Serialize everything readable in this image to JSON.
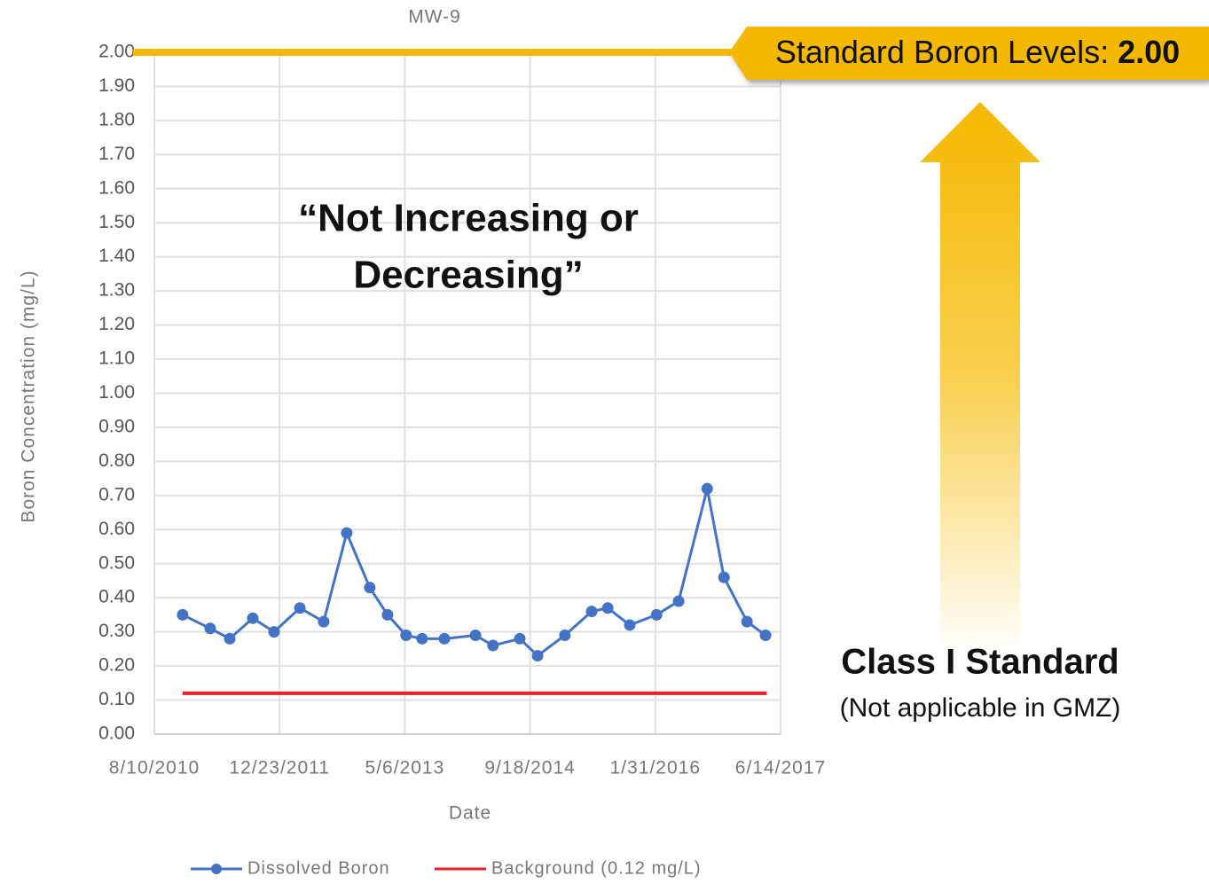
{
  "chart_data": {
    "type": "line",
    "title": "MW-9",
    "x_label": "Date",
    "y_label": "Boron Concentration  (mg/L)",
    "xlim": [
      "2010-08-10",
      "2017-06-14"
    ],
    "xticks": [
      {
        "value": "2010-08-10",
        "label": "8/10/2010"
      },
      {
        "value": "2011-12-23",
        "label": "12/23/2011"
      },
      {
        "value": "2013-05-06",
        "label": "5/6/2013"
      },
      {
        "value": "2014-09-18",
        "label": "9/18/2014"
      },
      {
        "value": "2016-01-31",
        "label": "1/31/2016"
      },
      {
        "value": "2017-06-14",
        "label": "6/14/2017"
      }
    ],
    "ylim": [
      0,
      2
    ],
    "yticks": [
      {
        "value": 0,
        "label": "0.00"
      },
      {
        "value": 0.1,
        "label": "0.10"
      },
      {
        "value": 0.2,
        "label": "0.20"
      },
      {
        "value": 0.3,
        "label": "0.30"
      },
      {
        "value": 0.4,
        "label": "0.40"
      },
      {
        "value": 0.5,
        "label": "0.50"
      },
      {
        "value": 0.6,
        "label": "0.60"
      },
      {
        "value": 0.7,
        "label": "0.70"
      },
      {
        "value": 0.8,
        "label": "0.80"
      },
      {
        "value": 0.9,
        "label": "0.90"
      },
      {
        "value": 1,
        "label": "1.00"
      },
      {
        "value": 1.1,
        "label": "1.10"
      },
      {
        "value": 1.2,
        "label": "1.20"
      },
      {
        "value": 1.3,
        "label": "1.30"
      },
      {
        "value": 1.4,
        "label": "1.40"
      },
      {
        "value": 1.5,
        "label": "1.50"
      },
      {
        "value": 1.6,
        "label": "1.60"
      },
      {
        "value": 1.7,
        "label": "1.70"
      },
      {
        "value": 1.8,
        "label": "1.80"
      },
      {
        "value": 1.9,
        "label": "1.90"
      },
      {
        "value": 2,
        "label": "2.00"
      }
    ],
    "grid": true,
    "legend": "bottom",
    "series": [
      {
        "name": "Dissolved Boron",
        "color": "#4472c4",
        "marker": true,
        "x": [
          "2010-12-01",
          "2011-03-21",
          "2011-06-07",
          "2011-09-07",
          "2011-12-01",
          "2012-03-13",
          "2012-06-16",
          "2012-09-16",
          "2012-12-17",
          "2013-02-26",
          "2013-05-11",
          "2013-07-14",
          "2013-10-11",
          "2014-02-12",
          "2014-04-23",
          "2014-08-08",
          "2014-10-18",
          "2015-02-04",
          "2015-05-22",
          "2015-07-25",
          "2015-10-21",
          "2016-02-05",
          "2016-05-03",
          "2016-08-25",
          "2016-10-31",
          "2017-01-31",
          "2017-04-15"
        ],
        "values": [
          0.35,
          0.31,
          0.28,
          0.34,
          0.3,
          0.37,
          0.33,
          0.59,
          0.43,
          0.35,
          0.29,
          0.28,
          0.28,
          0.29,
          0.26,
          0.28,
          0.23,
          0.29,
          0.36,
          0.37,
          0.32,
          0.35,
          0.39,
          0.72,
          0.46,
          0.33,
          0.29
        ]
      },
      {
        "name": "Background (0.12 mg/L)",
        "color": "#e8212a",
        "marker": false,
        "x": [
          "2010-12-01",
          "2017-04-20"
        ],
        "values": [
          0.12,
          0.12
        ]
      }
    ],
    "annotation_lines": [
      "“Not Increasing or",
      "Decreasing”"
    ],
    "standard": {
      "label": "Standard Boron Levels:",
      "value": 2,
      "value_label": "2.00",
      "color": "#f5b800"
    },
    "side_title": "Class I Standard",
    "side_subtitle": "(Not applicable in GMZ)"
  }
}
